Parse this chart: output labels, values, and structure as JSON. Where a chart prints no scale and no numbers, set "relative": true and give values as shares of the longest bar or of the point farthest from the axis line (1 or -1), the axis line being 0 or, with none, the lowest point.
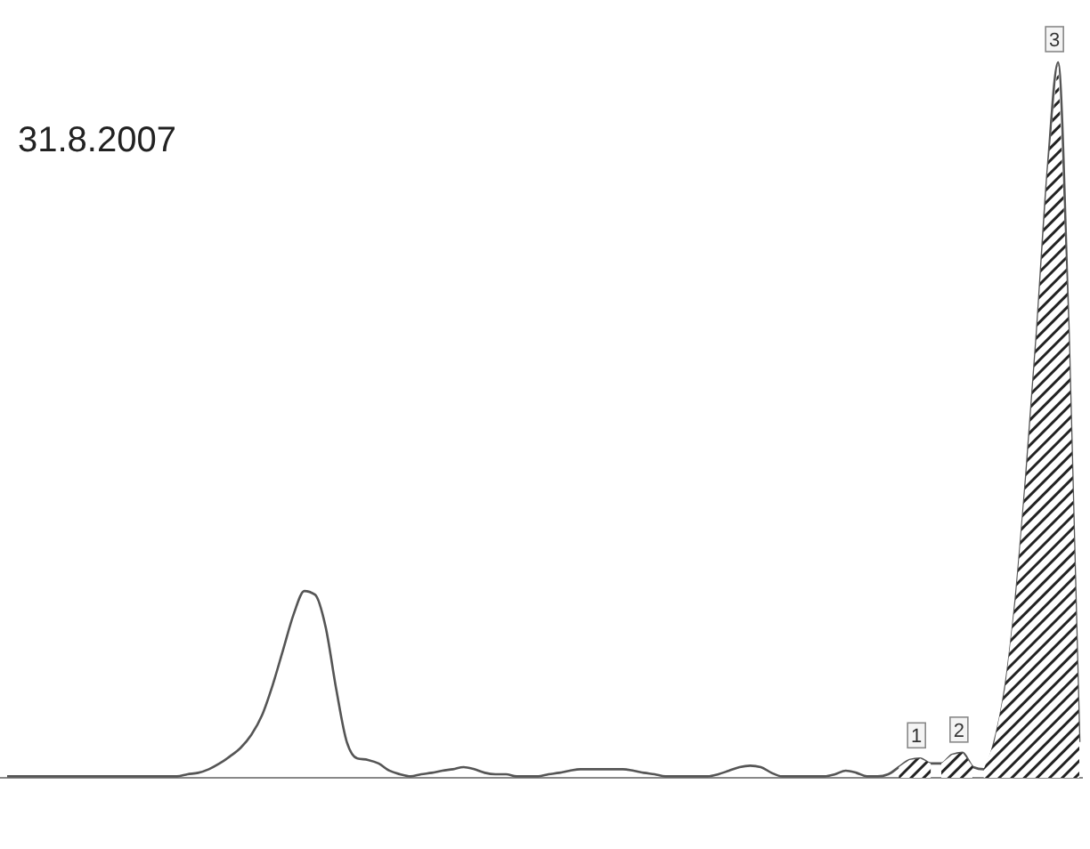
{
  "chart_data": {
    "type": "line",
    "relative": true,
    "categories": [
      null,
      null,
      null,
      null,
      null,
      null,
      null,
      null,
      null,
      null,
      null,
      null,
      null,
      null,
      null,
      null,
      null,
      null,
      null,
      null,
      null,
      null,
      null,
      null,
      null,
      null,
      null,
      null,
      null,
      null,
      null,
      null,
      null,
      null,
      null,
      null,
      null,
      null,
      null,
      null,
      null,
      null,
      null,
      null,
      null,
      null,
      null,
      null,
      null,
      null,
      null,
      null,
      null,
      null,
      null,
      null,
      null,
      null,
      null,
      null,
      null,
      null,
      null,
      null,
      null,
      null,
      null,
      null,
      null,
      null,
      null,
      null,
      null,
      null,
      null,
      null,
      null,
      null,
      null,
      null,
      null,
      null,
      null,
      null,
      null,
      null,
      null,
      null,
      null,
      null,
      null,
      null,
      null,
      null,
      null,
      null,
      null,
      null,
      null,
      null,
      null,
      null
    ],
    "series": [
      {
        "color": "#555555",
        "values": [
          0.002,
          0.002,
          0.002,
          0.002,
          0.002,
          0.002,
          0.002,
          0.002,
          0.002,
          0.002,
          0.002,
          0.002,
          0.002,
          0.002,
          0.002,
          0.002,
          0.002,
          0.005,
          0.007,
          0.012,
          0.02,
          0.03,
          0.042,
          0.06,
          0.087,
          0.129,
          0.179,
          0.229,
          0.261,
          0.256,
          0.211,
          0.124,
          0.05,
          0.027,
          0.025,
          0.02,
          0.01,
          0.005,
          0.002,
          0.005,
          0.007,
          0.01,
          0.012,
          0.015,
          0.012,
          0.007,
          0.005,
          0.005,
          0.002,
          0.002,
          0.002,
          0.005,
          0.007,
          0.01,
          0.012,
          0.012,
          0.012,
          0.012,
          0.012,
          0.01,
          0.007,
          0.005,
          0.002,
          0.002,
          0.002,
          0.002,
          0.002,
          0.005,
          0.01,
          0.015,
          0.017,
          0.015,
          0.007,
          0.002,
          0.002,
          0.002,
          0.002,
          0.002,
          0.005,
          0.01,
          0.007,
          0.002,
          0.002,
          0.005,
          0.015,
          0.025,
          0.027,
          0.02,
          0.02,
          0.032,
          0.035,
          0.015,
          0.012,
          0.05,
          0.124,
          0.249,
          0.423,
          0.622,
          0.846,
          1,
          0.622,
          0.05
        ]
      },
      {
        "type": "area",
        "color": "#222222",
        "values": [
          null,
          null,
          null,
          null,
          null,
          null,
          null,
          null,
          null,
          null,
          null,
          null,
          null,
          null,
          null,
          null,
          null,
          null,
          null,
          null,
          null,
          null,
          null,
          null,
          null,
          null,
          null,
          null,
          null,
          null,
          null,
          null,
          null,
          null,
          null,
          null,
          null,
          null,
          null,
          null,
          null,
          null,
          null,
          null,
          null,
          null,
          null,
          null,
          null,
          null,
          null,
          null,
          null,
          null,
          null,
          null,
          null,
          null,
          null,
          null,
          null,
          null,
          null,
          null,
          null,
          null,
          null,
          null,
          null,
          null,
          null,
          null,
          null,
          null,
          null,
          null,
          null,
          null,
          null,
          null,
          null,
          null,
          null,
          null,
          0.015,
          0.025,
          0.027,
          0.02,
          null,
          null,
          null,
          null,
          null,
          null,
          null,
          null,
          null,
          null,
          null,
          null,
          null,
          null
        ]
      },
      {
        "type": "area",
        "color": "#222222",
        "values": [
          null,
          null,
          null,
          null,
          null,
          null,
          null,
          null,
          null,
          null,
          null,
          null,
          null,
          null,
          null,
          null,
          null,
          null,
          null,
          null,
          null,
          null,
          null,
          null,
          null,
          null,
          null,
          null,
          null,
          null,
          null,
          null,
          null,
          null,
          null,
          null,
          null,
          null,
          null,
          null,
          null,
          null,
          null,
          null,
          null,
          null,
          null,
          null,
          null,
          null,
          null,
          null,
          null,
          null,
          null,
          null,
          null,
          null,
          null,
          null,
          null,
          null,
          null,
          null,
          null,
          null,
          null,
          null,
          null,
          null,
          null,
          null,
          null,
          null,
          null,
          null,
          null,
          null,
          null,
          null,
          null,
          null,
          null,
          null,
          null,
          null,
          null,
          null,
          0.02,
          0.032,
          0.035,
          0.015,
          null,
          null,
          null,
          null,
          null,
          null,
          null,
          null,
          null,
          null
        ]
      },
      {
        "type": "area",
        "color": "#222222",
        "values": [
          null,
          null,
          null,
          null,
          null,
          null,
          null,
          null,
          null,
          null,
          null,
          null,
          null,
          null,
          null,
          null,
          null,
          null,
          null,
          null,
          null,
          null,
          null,
          null,
          null,
          null,
          null,
          null,
          null,
          null,
          null,
          null,
          null,
          null,
          null,
          null,
          null,
          null,
          null,
          null,
          null,
          null,
          null,
          null,
          null,
          null,
          null,
          null,
          null,
          null,
          null,
          null,
          null,
          null,
          null,
          null,
          null,
          null,
          null,
          null,
          null,
          null,
          null,
          null,
          null,
          null,
          null,
          null,
          null,
          null,
          null,
          null,
          null,
          null,
          null,
          null,
          null,
          null,
          null,
          null,
          null,
          null,
          null,
          null,
          null,
          null,
          null,
          null,
          null,
          null,
          null,
          null,
          0.012,
          0.05,
          0.124,
          0.249,
          0.423,
          0.622,
          0.846,
          1,
          0.622,
          0.05
        ]
      }
    ],
    "annotations": [
      "31.8.2007",
      "1",
      "2",
      "3"
    ],
    "grid": false,
    "marker": "none",
    "line_style": "solid"
  }
}
